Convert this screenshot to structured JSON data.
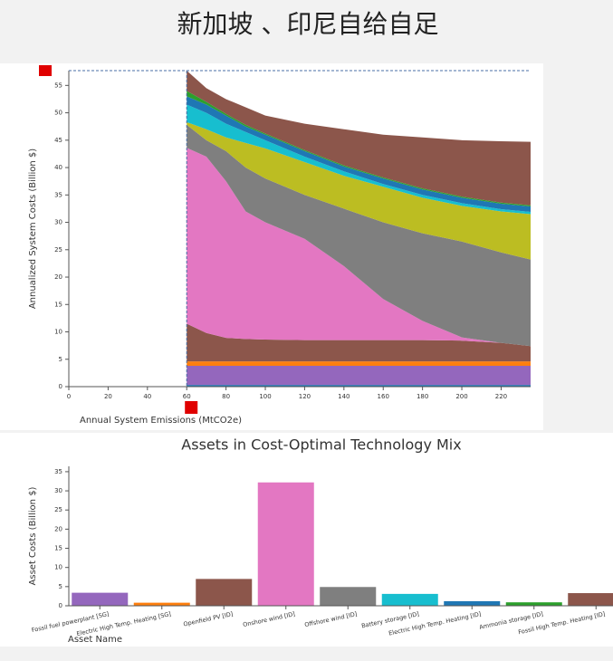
{
  "header": {
    "title": "新加坡 、印尼自给自足"
  },
  "chart_data": [
    {
      "type": "area",
      "xlabel": "Annual System Emissions (MtCO2e)",
      "ylabel": "Annualized System Costs (Billion $)",
      "x": [
        60,
        70,
        80,
        90,
        100,
        120,
        140,
        160,
        180,
        200,
        220,
        235
      ],
      "series": [
        {
          "color": "#1f77b4",
          "values": [
            0.3,
            0.3,
            0.3,
            0.3,
            0.3,
            0.3,
            0.3,
            0.3,
            0.3,
            0.3,
            0.3,
            0.3
          ]
        },
        {
          "color": "#9467bd",
          "values": [
            3.5,
            3.5,
            3.5,
            3.5,
            3.5,
            3.5,
            3.5,
            3.5,
            3.5,
            3.5,
            3.5,
            3.5
          ]
        },
        {
          "color": "#ff7f0e",
          "values": [
            0.8,
            0.8,
            0.8,
            0.8,
            0.8,
            0.8,
            0.8,
            0.8,
            0.8,
            0.8,
            0.8,
            0.8
          ]
        },
        {
          "color": "#8c564b",
          "values": [
            6.9,
            5.2,
            4.3,
            4.1,
            4.0,
            3.9,
            3.9,
            3.9,
            3.9,
            3.8,
            3.4,
            2.8
          ]
        },
        {
          "color": "#e377c2",
          "values": [
            32.1,
            32.2,
            28.6,
            23.3,
            21.4,
            18.5,
            13.5,
            7.5,
            3.5,
            0.6,
            0,
            0
          ]
        },
        {
          "color": "#7f7f7f",
          "values": [
            4.2,
            3,
            5.5,
            8,
            8,
            8,
            10.5,
            14,
            16,
            17.5,
            16.5,
            15.8
          ]
        },
        {
          "color": "#bcbd22",
          "values": [
            0.5,
            2,
            2.5,
            4.5,
            5.5,
            6,
            6,
            6.5,
            6.5,
            6.5,
            7.5,
            8.3
          ]
        },
        {
          "color": "#17becf",
          "values": [
            3.2,
            3,
            2.5,
            2,
            1.5,
            1,
            0.8,
            0.5,
            0.5,
            0.5,
            0.4,
            0.4
          ]
        },
        {
          "color": "#1f77b4",
          "values": [
            1.5,
            1.5,
            1.5,
            1,
            1,
            1,
            0.9,
            1,
            1,
            1,
            1,
            1
          ]
        },
        {
          "color": "#2ca02c",
          "values": [
            1,
            0.5,
            0.3,
            0.3,
            0.2,
            0.2,
            0.2,
            0.2,
            0.2,
            0.2,
            0.2,
            0.2
          ]
        },
        {
          "color": "#8c564b",
          "values": [
            3.7,
            2.5,
            2.7,
            3.2,
            3.3,
            4.8,
            6.6,
            7.8,
            9.3,
            10.3,
            11.2,
            11.6
          ]
        }
      ],
      "xlim": [
        0,
        235
      ],
      "xticks": [
        0,
        20,
        40,
        60,
        80,
        100,
        120,
        140,
        160,
        180,
        200,
        220
      ],
      "ylim": [
        0,
        57.7
      ],
      "yticks": [
        0,
        5,
        10,
        15,
        20,
        25,
        30,
        35,
        40,
        45,
        50,
        55
      ],
      "selected_x": 60
    },
    {
      "type": "bar",
      "title": "Assets in Cost-Optimal Technology Mix",
      "xlabel": "Asset Name",
      "ylabel": "Asset Costs (Billion $)",
      "categories": [
        "Fossil fuel powerplant [SG]",
        "Electric High Temp. Heating [SG]",
        "Openfield PV [ID]",
        "Onshore wind [ID]",
        "Offshore wind [ID]",
        "Battery storage [ID]",
        "Electric High Temp. Heating [ID]",
        "Ammonia storage [ID]",
        "Fossil High Temp. Heating [ID]"
      ],
      "values": [
        3.4,
        0.8,
        7,
        32.2,
        4.9,
        3.1,
        1.2,
        0.9,
        3.3
      ],
      "colors": [
        "#9467bd",
        "#ff7f0e",
        "#8c564b",
        "#e377c2",
        "#7f7f7f",
        "#17becf",
        "#1f77b4",
        "#2ca02c",
        "#8c564b"
      ],
      "ylim": [
        0,
        36.4
      ],
      "yticks": [
        0,
        5,
        10,
        15,
        20,
        25,
        30,
        35
      ]
    }
  ]
}
